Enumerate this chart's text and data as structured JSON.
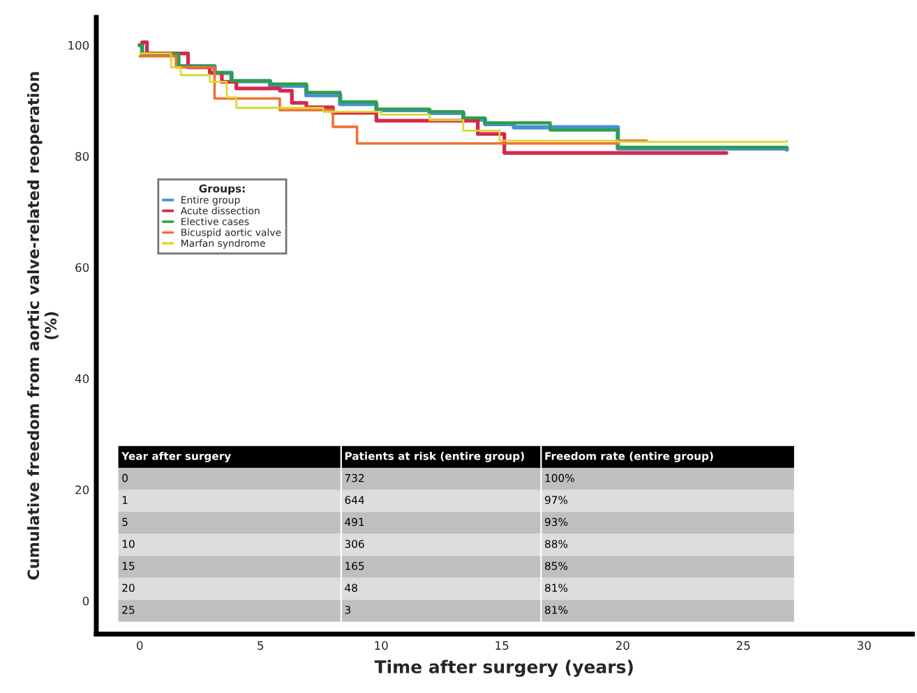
{
  "chart_data": {
    "type": "step",
    "xlabel": "Time after surgery (years)",
    "ylabel": "Cumulative freedom from aortic valve-related reoperation\n(%)",
    "legend_title": "Groups:",
    "legend": "top left",
    "grid": false,
    "xlim": [
      -1.8,
      32
    ],
    "ylim": [
      -6,
      105
    ],
    "xticks": [
      0,
      5,
      10,
      15,
      20,
      25,
      30
    ],
    "yticks": [
      0,
      20,
      40,
      60,
      80,
      100
    ],
    "series": [
      {
        "name": "Entire group",
        "color": "#4a90d0",
        "x": [
          0,
          0.1,
          1.6,
          3.1,
          3.8,
          5.4,
          6.9,
          8.3,
          9.8,
          12,
          13.4,
          14.3,
          15.5,
          19.8,
          26.8
        ],
        "values": [
          100,
          98.4,
          96.2,
          95,
          93.5,
          92.7,
          91,
          89.4,
          88.3,
          87.8,
          86.6,
          85.8,
          85.2,
          81.4,
          81.2
        ]
      },
      {
        "name": "Acute dissection",
        "color": "#d6284b",
        "x": [
          0,
          0.1,
          0.3,
          2,
          2.9,
          3.4,
          4,
          5.8,
          6.3,
          6.9,
          8,
          9.8,
          12,
          14,
          15.1,
          24.3
        ],
        "values": [
          100,
          100.5,
          98.5,
          96,
          95,
          93.4,
          92.2,
          91.8,
          89.6,
          88.8,
          87.8,
          86.4,
          86.4,
          84,
          80.6,
          80.6
        ]
      },
      {
        "name": "Elective cases",
        "color": "#2e9e48",
        "x": [
          0,
          0.1,
          1.6,
          3.1,
          3.8,
          5.4,
          6.9,
          8.3,
          9.8,
          12,
          13.4,
          14.3,
          17,
          19.8,
          26.8
        ],
        "values": [
          100,
          98.4,
          96.2,
          95,
          93.6,
          93,
          91.5,
          89.8,
          88.5,
          88,
          86.9,
          86,
          84.7,
          81.6,
          81.6
        ]
      },
      {
        "name": "Bicuspid aortic valve",
        "color": "#f07030",
        "x": [
          0,
          1.5,
          2.9,
          3.1,
          5.8,
          8,
          9,
          19.8,
          21
        ],
        "values": [
          98,
          96,
          96,
          90.4,
          88.3,
          85.3,
          82.3,
          82.8,
          82.8
        ]
      },
      {
        "name": "Marfan syndrome",
        "color": "#d8d830",
        "x": [
          0,
          1.3,
          1.7,
          2.9,
          3.6,
          4,
          7.6,
          10,
          12,
          13.4,
          14.9,
          19.8,
          26.8
        ],
        "values": [
          98.5,
          96,
          94.6,
          93.4,
          90.6,
          88.7,
          88,
          87.5,
          86.5,
          84.6,
          82.8,
          82.6,
          82.8
        ]
      }
    ],
    "annotations": [
      "Year after surgery",
      "Patients at risk (entire group)",
      "Freedom rate (entire group)",
      "0",
      "732",
      "100%",
      "1",
      "644",
      "97%",
      "5",
      "491",
      "93%",
      "10",
      "306",
      "88%",
      "15",
      "165",
      "85%",
      "20",
      "48",
      "81%",
      "25",
      "3",
      "81%"
    ]
  }
}
